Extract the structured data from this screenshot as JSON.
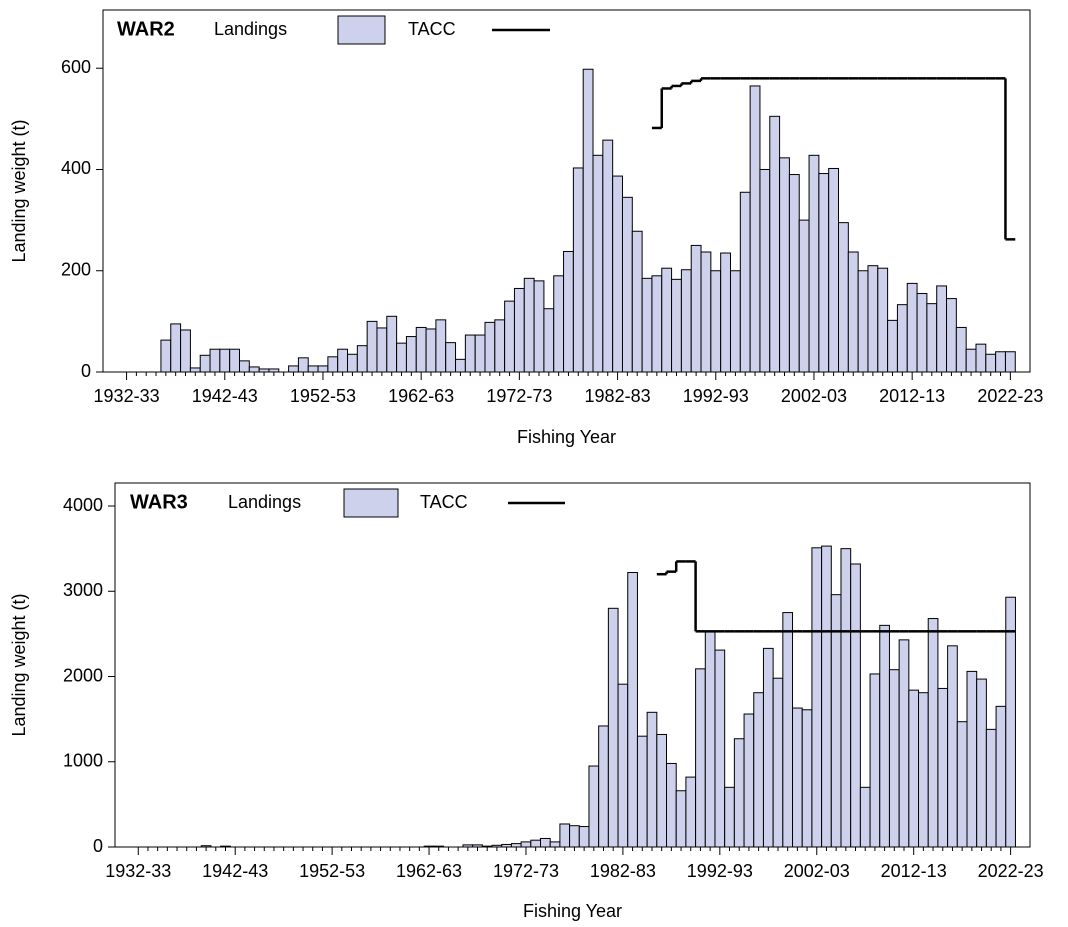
{
  "chart_data": [
    {
      "type": "bar",
      "title": "WAR2",
      "x_label": "Fishing Year",
      "y_label": "Landing weight (t)",
      "categories": [
        "1932-33",
        null,
        null,
        null,
        null,
        null,
        null,
        null,
        null,
        null,
        "1942-43",
        null,
        null,
        null,
        null,
        null,
        null,
        null,
        null,
        null,
        "1952-53",
        null,
        null,
        null,
        null,
        null,
        null,
        null,
        null,
        null,
        "1962-63",
        null,
        null,
        null,
        null,
        null,
        null,
        null,
        null,
        null,
        "1972-73",
        null,
        null,
        null,
        null,
        null,
        null,
        null,
        null,
        null,
        "1982-83",
        null,
        null,
        null,
        null,
        null,
        null,
        null,
        null,
        null,
        "1992-93",
        null,
        null,
        null,
        null,
        null,
        null,
        null,
        null,
        null,
        "2002-03",
        null,
        null,
        null,
        null,
        null,
        null,
        null,
        null,
        null,
        "2012-13",
        null,
        null,
        null,
        null,
        null,
        null,
        null,
        null,
        null,
        "2022-23"
      ],
      "series": [
        {
          "name": "Landings",
          "color": "#cdd1ec",
          "values": [
            0,
            0,
            0,
            0,
            63,
            95,
            83,
            8,
            33,
            45,
            45,
            45,
            22,
            10,
            6,
            6,
            0,
            12,
            28,
            12,
            12,
            30,
            45,
            35,
            52,
            100,
            87,
            110,
            57,
            70,
            88,
            85,
            103,
            58,
            25,
            73,
            73,
            98,
            103,
            140,
            165,
            185,
            180,
            125,
            190,
            238,
            403,
            598,
            428,
            458,
            387,
            345,
            278,
            185,
            190,
            205,
            183,
            202,
            250,
            237,
            200,
            235,
            200,
            355,
            565,
            400,
            505,
            423,
            390,
            300,
            428,
            392,
            402,
            295,
            237,
            200,
            210,
            205,
            102,
            133,
            175,
            155,
            135,
            170,
            145,
            88,
            45,
            55,
            35,
            40,
            40
          ]
        },
        {
          "name": "TACC",
          "color": "#000000",
          "type": "step",
          "values": [
            null,
            null,
            null,
            null,
            null,
            null,
            null,
            null,
            null,
            null,
            null,
            null,
            null,
            null,
            null,
            null,
            null,
            null,
            null,
            null,
            null,
            null,
            null,
            null,
            null,
            null,
            null,
            null,
            null,
            null,
            null,
            null,
            null,
            null,
            null,
            null,
            null,
            null,
            null,
            null,
            null,
            null,
            null,
            null,
            null,
            null,
            null,
            null,
            null,
            null,
            null,
            null,
            null,
            null,
            482,
            560,
            565,
            570,
            575,
            580,
            580,
            580,
            580,
            580,
            580,
            580,
            580,
            580,
            580,
            580,
            580,
            580,
            580,
            580,
            580,
            580,
            580,
            580,
            580,
            580,
            580,
            580,
            580,
            580,
            580,
            580,
            580,
            580,
            580,
            580,
            262
          ]
        }
      ],
      "ylim": [
        0,
        715
      ],
      "yticks": [
        0,
        200,
        400,
        600
      ]
    },
    {
      "type": "bar",
      "title": "WAR3",
      "x_label": "Fishing Year",
      "y_label": "Landing weight (t)",
      "categories": [
        "1932-33",
        null,
        null,
        null,
        null,
        null,
        null,
        null,
        null,
        null,
        "1942-43",
        null,
        null,
        null,
        null,
        null,
        null,
        null,
        null,
        null,
        "1952-53",
        null,
        null,
        null,
        null,
        null,
        null,
        null,
        null,
        null,
        "1962-63",
        null,
        null,
        null,
        null,
        null,
        null,
        null,
        null,
        null,
        "1972-73",
        null,
        null,
        null,
        null,
        null,
        null,
        null,
        null,
        null,
        "1982-83",
        null,
        null,
        null,
        null,
        null,
        null,
        null,
        null,
        null,
        "1992-93",
        null,
        null,
        null,
        null,
        null,
        null,
        null,
        null,
        null,
        "2002-03",
        null,
        null,
        null,
        null,
        null,
        null,
        null,
        null,
        null,
        "2012-13",
        null,
        null,
        null,
        null,
        null,
        null,
        null,
        null,
        null,
        "2022-23"
      ],
      "series": [
        {
          "name": "Landings",
          "color": "#cdd1ec",
          "values": [
            0,
            0,
            0,
            0,
            0,
            0,
            0,
            15,
            0,
            10,
            0,
            0,
            0,
            0,
            0,
            0,
            0,
            0,
            0,
            0,
            0,
            0,
            0,
            0,
            0,
            0,
            0,
            0,
            0,
            0,
            10,
            10,
            0,
            0,
            25,
            25,
            10,
            20,
            30,
            40,
            60,
            80,
            100,
            60,
            270,
            250,
            240,
            950,
            1420,
            2800,
            1910,
            3220,
            1300,
            1580,
            1320,
            980,
            660,
            820,
            2090,
            2530,
            2310,
            700,
            1270,
            1560,
            1810,
            2330,
            1980,
            2750,
            1630,
            1610,
            3510,
            3530,
            2960,
            3500,
            3320,
            700,
            2030,
            2600,
            2080,
            2430,
            1840,
            1810,
            2680,
            1860,
            2360,
            1470,
            2060,
            1970,
            1380,
            1650,
            2930
          ]
        },
        {
          "name": "TACC",
          "color": "#000000",
          "type": "step",
          "values": [
            null,
            null,
            null,
            null,
            null,
            null,
            null,
            null,
            null,
            null,
            null,
            null,
            null,
            null,
            null,
            null,
            null,
            null,
            null,
            null,
            null,
            null,
            null,
            null,
            null,
            null,
            null,
            null,
            null,
            null,
            null,
            null,
            null,
            null,
            null,
            null,
            null,
            null,
            null,
            null,
            null,
            null,
            null,
            null,
            null,
            null,
            null,
            null,
            null,
            null,
            null,
            null,
            null,
            null,
            3200,
            3230,
            3350,
            3350,
            2530,
            2530,
            2530,
            2530,
            2530,
            2530,
            2530,
            2530,
            2530,
            2530,
            2530,
            2530,
            2530,
            2530,
            2530,
            2530,
            2530,
            2530,
            2530,
            2530,
            2530,
            2530,
            2530,
            2530,
            2530,
            2530,
            2530,
            2530,
            2530,
            2530,
            2530,
            2530,
            2530
          ]
        }
      ],
      "ylim": [
        0,
        4270
      ],
      "yticks": [
        0,
        1000,
        2000,
        3000,
        4000
      ]
    }
  ]
}
